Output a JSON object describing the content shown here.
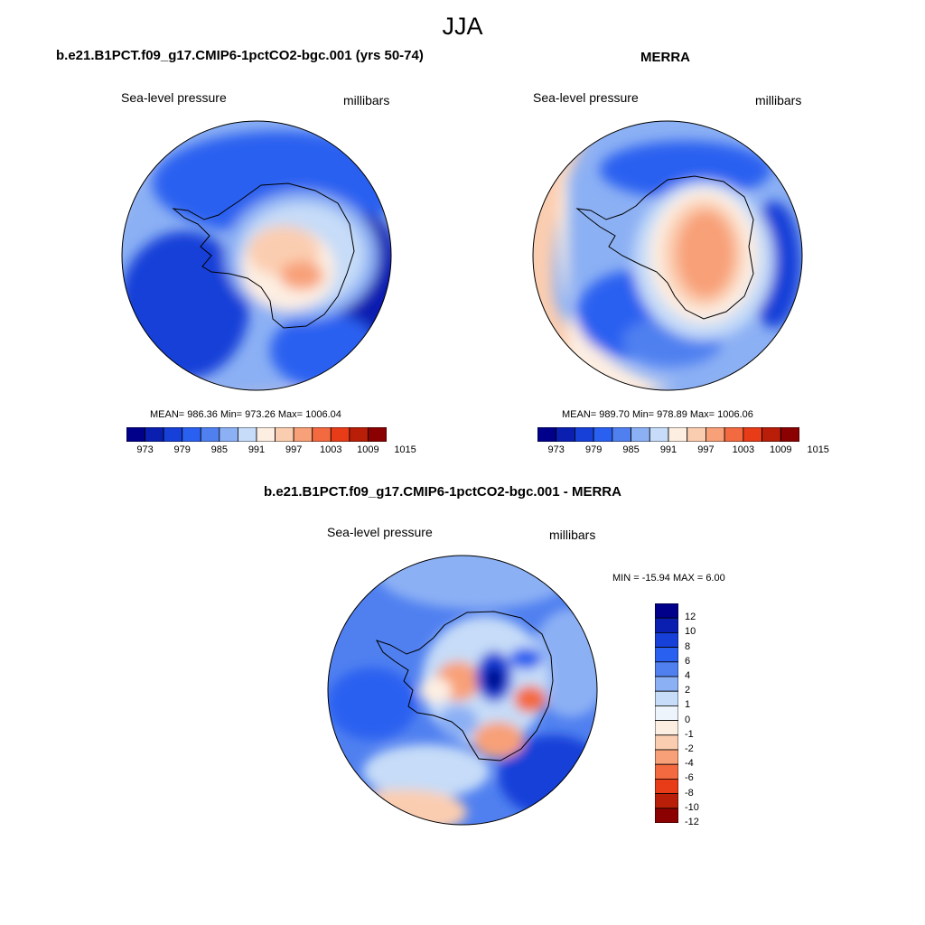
{
  "title": "JJA",
  "panels": {
    "model": {
      "title": "b.e21.B1PCT.f09_g17.CMIP6-1pctCO2-bgc.001 (yrs 50-74)",
      "left_label": "Sea-level pressure",
      "right_label": "millibars",
      "stats": "MEAN= 986.36  Min= 973.26  Max= 1006.04"
    },
    "obs": {
      "title": "MERRA",
      "left_label": "Sea-level pressure",
      "right_label": "millibars",
      "stats": "MEAN= 989.70  Min= 978.89  Max= 1006.06"
    },
    "diff": {
      "title": "b.e21.B1PCT.f09_g17.CMIP6-1pctCO2-bgc.001 - MERRA",
      "left_label": "Sea-level pressure",
      "right_label": "millibars",
      "stats": "MIN = -15.94 MAX =   6.00"
    }
  },
  "colorbar_main": {
    "colors": [
      "#00008b",
      "#0a1fb0",
      "#1740d8",
      "#2a60f0",
      "#5080f0",
      "#8cb0f4",
      "#c6dcf8",
      "#fdeee2",
      "#fbcdb0",
      "#f8a078",
      "#f46a40",
      "#e83b18",
      "#b81e08",
      "#8b0000"
    ],
    "tick_labels": [
      "973",
      "979",
      "985",
      "991",
      "997",
      "1003",
      "1009",
      "1015"
    ]
  },
  "colorbar_diff": {
    "colors": [
      "#00008b",
      "#0a1fb0",
      "#1740d8",
      "#2a60f0",
      "#5080f0",
      "#8cb0f4",
      "#c6dcf8",
      "#eef4fc",
      "#fdeee2",
      "#fbcdb0",
      "#f8a078",
      "#f46a40",
      "#e83b18",
      "#b81e08",
      "#8b0000"
    ],
    "tick_labels": [
      "12",
      "10",
      "8",
      "6",
      "4",
      "2",
      "1",
      "0",
      "-1",
      "-2",
      "-4",
      "-6",
      "-8",
      "-10",
      "-12"
    ]
  }
}
